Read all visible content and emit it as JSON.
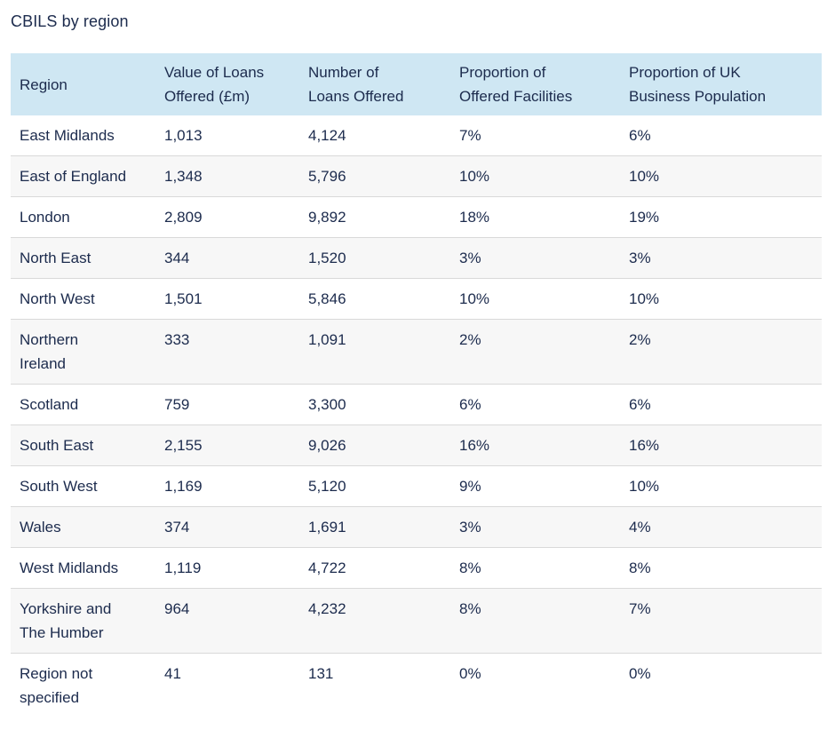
{
  "title": "CBILS by region",
  "colors": {
    "text_navy": "#1c2b4d",
    "header_background": "#cfe7f3",
    "row_stripe": "#f7f7f7",
    "row_border": "#d9d9d9",
    "page_background": "#ffffff"
  },
  "table": {
    "header": [
      "Region",
      "Value of Loans\nOffered (£m)",
      "Number of\nLoans Offered",
      "Proportion of\nOffered Facilities",
      "Proportion of UK\nBusiness Population"
    ],
    "rows": [
      [
        "East Midlands",
        "1,013",
        "4,124",
        "7%",
        "6%"
      ],
      [
        "East of England",
        "1,348",
        "5,796",
        "10%",
        "10%"
      ],
      [
        "London",
        "2,809",
        "9,892",
        "18%",
        "19%"
      ],
      [
        "North East",
        "344",
        "1,520",
        "3%",
        "3%"
      ],
      [
        "North West",
        "1,501",
        "5,846",
        "10%",
        "10%"
      ],
      [
        "Northern\nIreland",
        "333",
        "1,091",
        "2%",
        "2%"
      ],
      [
        "Scotland",
        "759",
        "3,300",
        "6%",
        "6%"
      ],
      [
        "South East",
        "2,155",
        "9,026",
        "16%",
        "16%"
      ],
      [
        "South West",
        "1,169",
        "5,120",
        "9%",
        "10%"
      ],
      [
        "Wales",
        "374",
        "1,691",
        "3%",
        "4%"
      ],
      [
        "West Midlands",
        "1,119",
        "4,722",
        "8%",
        "8%"
      ],
      [
        "Yorkshire and\nThe Humber",
        "964",
        "4,232",
        "8%",
        "7%"
      ],
      [
        "Region not\nspecified",
        "41",
        "131",
        "0%",
        "0%"
      ]
    ]
  },
  "chart_data": {
    "type": "table",
    "title": "CBILS by region",
    "columns": [
      "Region",
      "Value of Loans Offered (£m)",
      "Number of Loans Offered",
      "Proportion of Offered Facilities",
      "Proportion of UK Business Population"
    ],
    "rows": [
      {
        "region": "East Midlands",
        "value_of_loans_offered_m": 1013,
        "number_of_loans_offered": 4124,
        "proportion_of_offered_facilities": "7%",
        "proportion_of_uk_business_population": "6%"
      },
      {
        "region": "East of England",
        "value_of_loans_offered_m": 1348,
        "number_of_loans_offered": 5796,
        "proportion_of_offered_facilities": "10%",
        "proportion_of_uk_business_population": "10%"
      },
      {
        "region": "London",
        "value_of_loans_offered_m": 2809,
        "number_of_loans_offered": 9892,
        "proportion_of_offered_facilities": "18%",
        "proportion_of_uk_business_population": "19%"
      },
      {
        "region": "North East",
        "value_of_loans_offered_m": 344,
        "number_of_loans_offered": 1520,
        "proportion_of_offered_facilities": "3%",
        "proportion_of_uk_business_population": "3%"
      },
      {
        "region": "North West",
        "value_of_loans_offered_m": 1501,
        "number_of_loans_offered": 5846,
        "proportion_of_offered_facilities": "10%",
        "proportion_of_uk_business_population": "10%"
      },
      {
        "region": "Northern Ireland",
        "value_of_loans_offered_m": 333,
        "number_of_loans_offered": 1091,
        "proportion_of_offered_facilities": "2%",
        "proportion_of_uk_business_population": "2%"
      },
      {
        "region": "Scotland",
        "value_of_loans_offered_m": 759,
        "number_of_loans_offered": 3300,
        "proportion_of_offered_facilities": "6%",
        "proportion_of_uk_business_population": "6%"
      },
      {
        "region": "South East",
        "value_of_loans_offered_m": 2155,
        "number_of_loans_offered": 9026,
        "proportion_of_offered_facilities": "16%",
        "proportion_of_uk_business_population": "16%"
      },
      {
        "region": "South West",
        "value_of_loans_offered_m": 1169,
        "number_of_loans_offered": 5120,
        "proportion_of_offered_facilities": "9%",
        "proportion_of_uk_business_population": "10%"
      },
      {
        "region": "Wales",
        "value_of_loans_offered_m": 374,
        "number_of_loans_offered": 1691,
        "proportion_of_offered_facilities": "3%",
        "proportion_of_uk_business_population": "4%"
      },
      {
        "region": "West Midlands",
        "value_of_loans_offered_m": 1119,
        "number_of_loans_offered": 4722,
        "proportion_of_offered_facilities": "8%",
        "proportion_of_uk_business_population": "8%"
      },
      {
        "region": "Yorkshire and The Humber",
        "value_of_loans_offered_m": 964,
        "number_of_loans_offered": 4232,
        "proportion_of_offered_facilities": "8%",
        "proportion_of_uk_business_population": "7%"
      },
      {
        "region": "Region not specified",
        "value_of_loans_offered_m": 41,
        "number_of_loans_offered": 131,
        "proportion_of_offered_facilities": "0%",
        "proportion_of_uk_business_population": "0%"
      }
    ]
  }
}
